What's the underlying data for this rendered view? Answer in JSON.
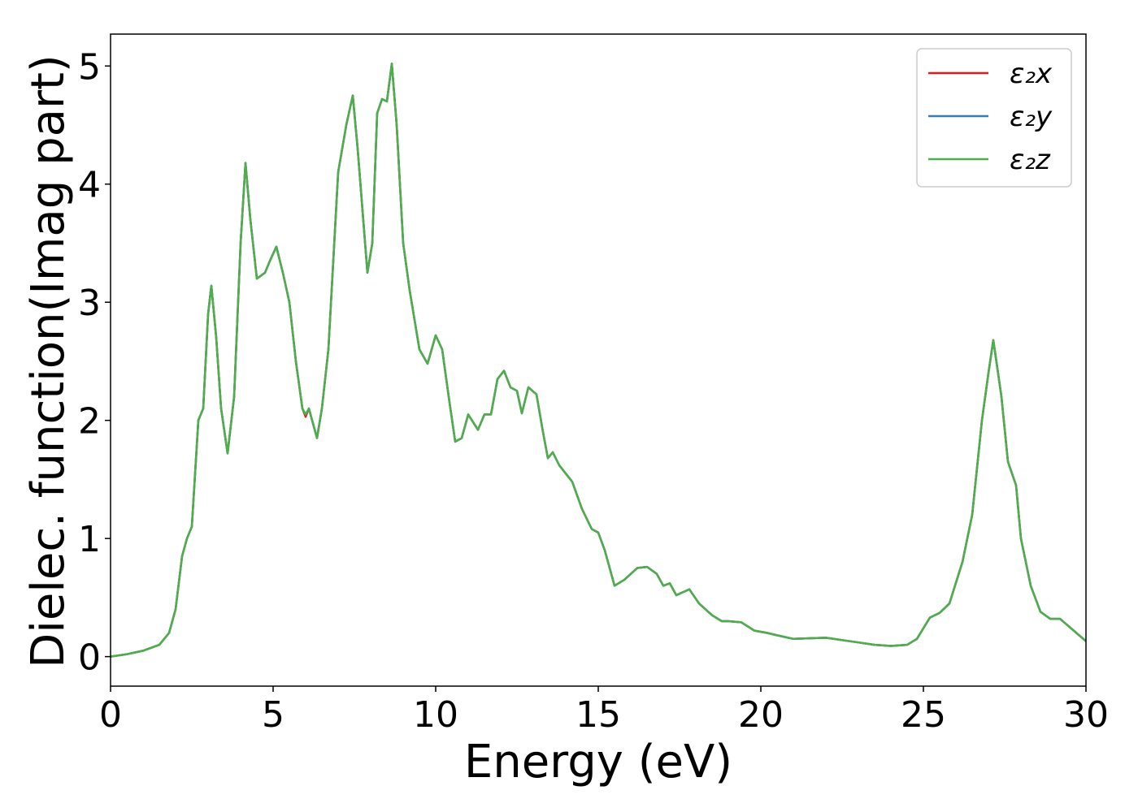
{
  "chart_data": {
    "type": "line",
    "xlabel": "Energy (eV)",
    "ylabel": "Dielec. function(Imag part)",
    "x": [
      0,
      0.5,
      1.0,
      1.5,
      1.8,
      2.0,
      2.2,
      2.35,
      2.5,
      2.7,
      2.85,
      3.0,
      3.1,
      3.25,
      3.4,
      3.6,
      3.8,
      4.0,
      4.15,
      4.3,
      4.5,
      4.75,
      4.9,
      5.1,
      5.3,
      5.5,
      5.7,
      5.9,
      6.0,
      6.1,
      6.35,
      6.5,
      6.7,
      7.0,
      7.25,
      7.45,
      7.6,
      7.9,
      8.05,
      8.2,
      8.35,
      8.5,
      8.65,
      8.8,
      9.0,
      9.2,
      9.5,
      9.75,
      10.0,
      10.2,
      10.4,
      10.6,
      10.8,
      11.0,
      11.3,
      11.5,
      11.7,
      11.9,
      12.1,
      12.3,
      12.5,
      12.65,
      12.85,
      13.1,
      13.3,
      13.45,
      13.6,
      13.8,
      14.0,
      14.2,
      14.5,
      14.8,
      15.0,
      15.2,
      15.5,
      15.8,
      16.0,
      16.2,
      16.5,
      16.8,
      17.0,
      17.2,
      17.4,
      17.8,
      18.1,
      18.5,
      18.8,
      19.0,
      19.4,
      19.8,
      20.2,
      20.5,
      21.0,
      22.0,
      22.5,
      23.0,
      23.5,
      24.0,
      24.5,
      24.8,
      25.2,
      25.5,
      25.8,
      26.2,
      26.5,
      26.8,
      27.0,
      27.15,
      27.4,
      27.6,
      27.85,
      28.0,
      28.3,
      28.6,
      28.9,
      29.2,
      29.5,
      30.0
    ],
    "series": [
      {
        "name": "ε₂x",
        "color": "#e41a1c",
        "values": [
          0,
          0.02,
          0.05,
          0.1,
          0.2,
          0.4,
          0.85,
          1.0,
          1.1,
          2.0,
          2.1,
          2.9,
          3.14,
          2.7,
          2.1,
          1.72,
          2.2,
          3.5,
          4.18,
          3.7,
          3.2,
          3.25,
          3.35,
          3.47,
          3.25,
          3.0,
          2.5,
          2.1,
          2.03,
          2.1,
          1.85,
          2.1,
          2.6,
          4.1,
          4.5,
          4.75,
          4.3,
          3.25,
          3.5,
          4.6,
          4.72,
          4.7,
          5.02,
          4.5,
          3.5,
          3.1,
          2.6,
          2.48,
          2.72,
          2.6,
          2.2,
          1.82,
          1.85,
          2.05,
          1.92,
          2.05,
          2.05,
          2.35,
          2.42,
          2.28,
          2.25,
          2.06,
          2.28,
          2.22,
          1.9,
          1.68,
          1.73,
          1.62,
          1.55,
          1.48,
          1.25,
          1.08,
          1.05,
          0.9,
          0.6,
          0.65,
          0.7,
          0.75,
          0.76,
          0.7,
          0.6,
          0.62,
          0.52,
          0.57,
          0.45,
          0.35,
          0.3,
          0.3,
          0.29,
          0.22,
          0.2,
          0.18,
          0.15,
          0.16,
          0.14,
          0.12,
          0.1,
          0.09,
          0.1,
          0.15,
          0.33,
          0.37,
          0.45,
          0.8,
          1.2,
          2.0,
          2.4,
          2.68,
          2.2,
          1.65,
          1.45,
          1.0,
          0.6,
          0.38,
          0.32,
          0.32,
          0.25,
          0.13
        ]
      },
      {
        "name": "ε₂y",
        "color": "#377eb8",
        "values": [
          0,
          0.02,
          0.05,
          0.1,
          0.2,
          0.4,
          0.85,
          1.0,
          1.1,
          2.0,
          2.1,
          2.9,
          3.14,
          2.7,
          2.1,
          1.72,
          2.2,
          3.5,
          4.18,
          3.7,
          3.2,
          3.25,
          3.35,
          3.47,
          3.25,
          3.0,
          2.5,
          2.1,
          2.05,
          2.1,
          1.85,
          2.1,
          2.6,
          4.1,
          4.5,
          4.75,
          4.3,
          3.25,
          3.5,
          4.6,
          4.72,
          4.7,
          5.02,
          4.5,
          3.5,
          3.1,
          2.6,
          2.48,
          2.72,
          2.6,
          2.2,
          1.82,
          1.85,
          2.05,
          1.92,
          2.05,
          2.05,
          2.35,
          2.42,
          2.28,
          2.25,
          2.06,
          2.28,
          2.22,
          1.9,
          1.68,
          1.73,
          1.62,
          1.55,
          1.48,
          1.25,
          1.08,
          1.05,
          0.9,
          0.6,
          0.65,
          0.7,
          0.75,
          0.76,
          0.7,
          0.6,
          0.62,
          0.52,
          0.57,
          0.45,
          0.35,
          0.3,
          0.3,
          0.29,
          0.22,
          0.2,
          0.18,
          0.15,
          0.16,
          0.14,
          0.12,
          0.1,
          0.09,
          0.1,
          0.15,
          0.33,
          0.37,
          0.45,
          0.8,
          1.2,
          2.0,
          2.4,
          2.68,
          2.2,
          1.65,
          1.45,
          1.0,
          0.6,
          0.38,
          0.32,
          0.32,
          0.25,
          0.13
        ]
      },
      {
        "name": "ε₂z",
        "color": "#4daf4a",
        "values": [
          0,
          0.02,
          0.05,
          0.1,
          0.2,
          0.4,
          0.85,
          1.0,
          1.1,
          2.0,
          2.1,
          2.9,
          3.14,
          2.7,
          2.1,
          1.72,
          2.2,
          3.5,
          4.18,
          3.7,
          3.2,
          3.25,
          3.35,
          3.47,
          3.25,
          3.0,
          2.5,
          2.1,
          2.05,
          2.1,
          1.85,
          2.1,
          2.6,
          4.1,
          4.5,
          4.75,
          4.3,
          3.25,
          3.5,
          4.6,
          4.72,
          4.7,
          5.02,
          4.5,
          3.5,
          3.1,
          2.6,
          2.48,
          2.72,
          2.6,
          2.2,
          1.82,
          1.85,
          2.05,
          1.92,
          2.05,
          2.05,
          2.35,
          2.42,
          2.28,
          2.25,
          2.06,
          2.28,
          2.22,
          1.9,
          1.68,
          1.73,
          1.62,
          1.55,
          1.48,
          1.25,
          1.08,
          1.05,
          0.9,
          0.6,
          0.65,
          0.7,
          0.75,
          0.76,
          0.7,
          0.6,
          0.62,
          0.52,
          0.57,
          0.45,
          0.35,
          0.3,
          0.3,
          0.29,
          0.22,
          0.2,
          0.18,
          0.15,
          0.16,
          0.14,
          0.12,
          0.1,
          0.09,
          0.1,
          0.15,
          0.33,
          0.37,
          0.45,
          0.8,
          1.2,
          2.0,
          2.4,
          2.68,
          2.2,
          1.65,
          1.45,
          1.0,
          0.6,
          0.38,
          0.32,
          0.32,
          0.25,
          0.13
        ]
      }
    ],
    "xlim": [
      0,
      30
    ],
    "xticks": [
      0,
      5,
      10,
      15,
      20,
      25,
      30
    ],
    "ylim": [
      -0.25,
      5.27
    ],
    "yticks": [
      0,
      1,
      2,
      3,
      4,
      5
    ],
    "grid": false,
    "legend": "upper right"
  }
}
